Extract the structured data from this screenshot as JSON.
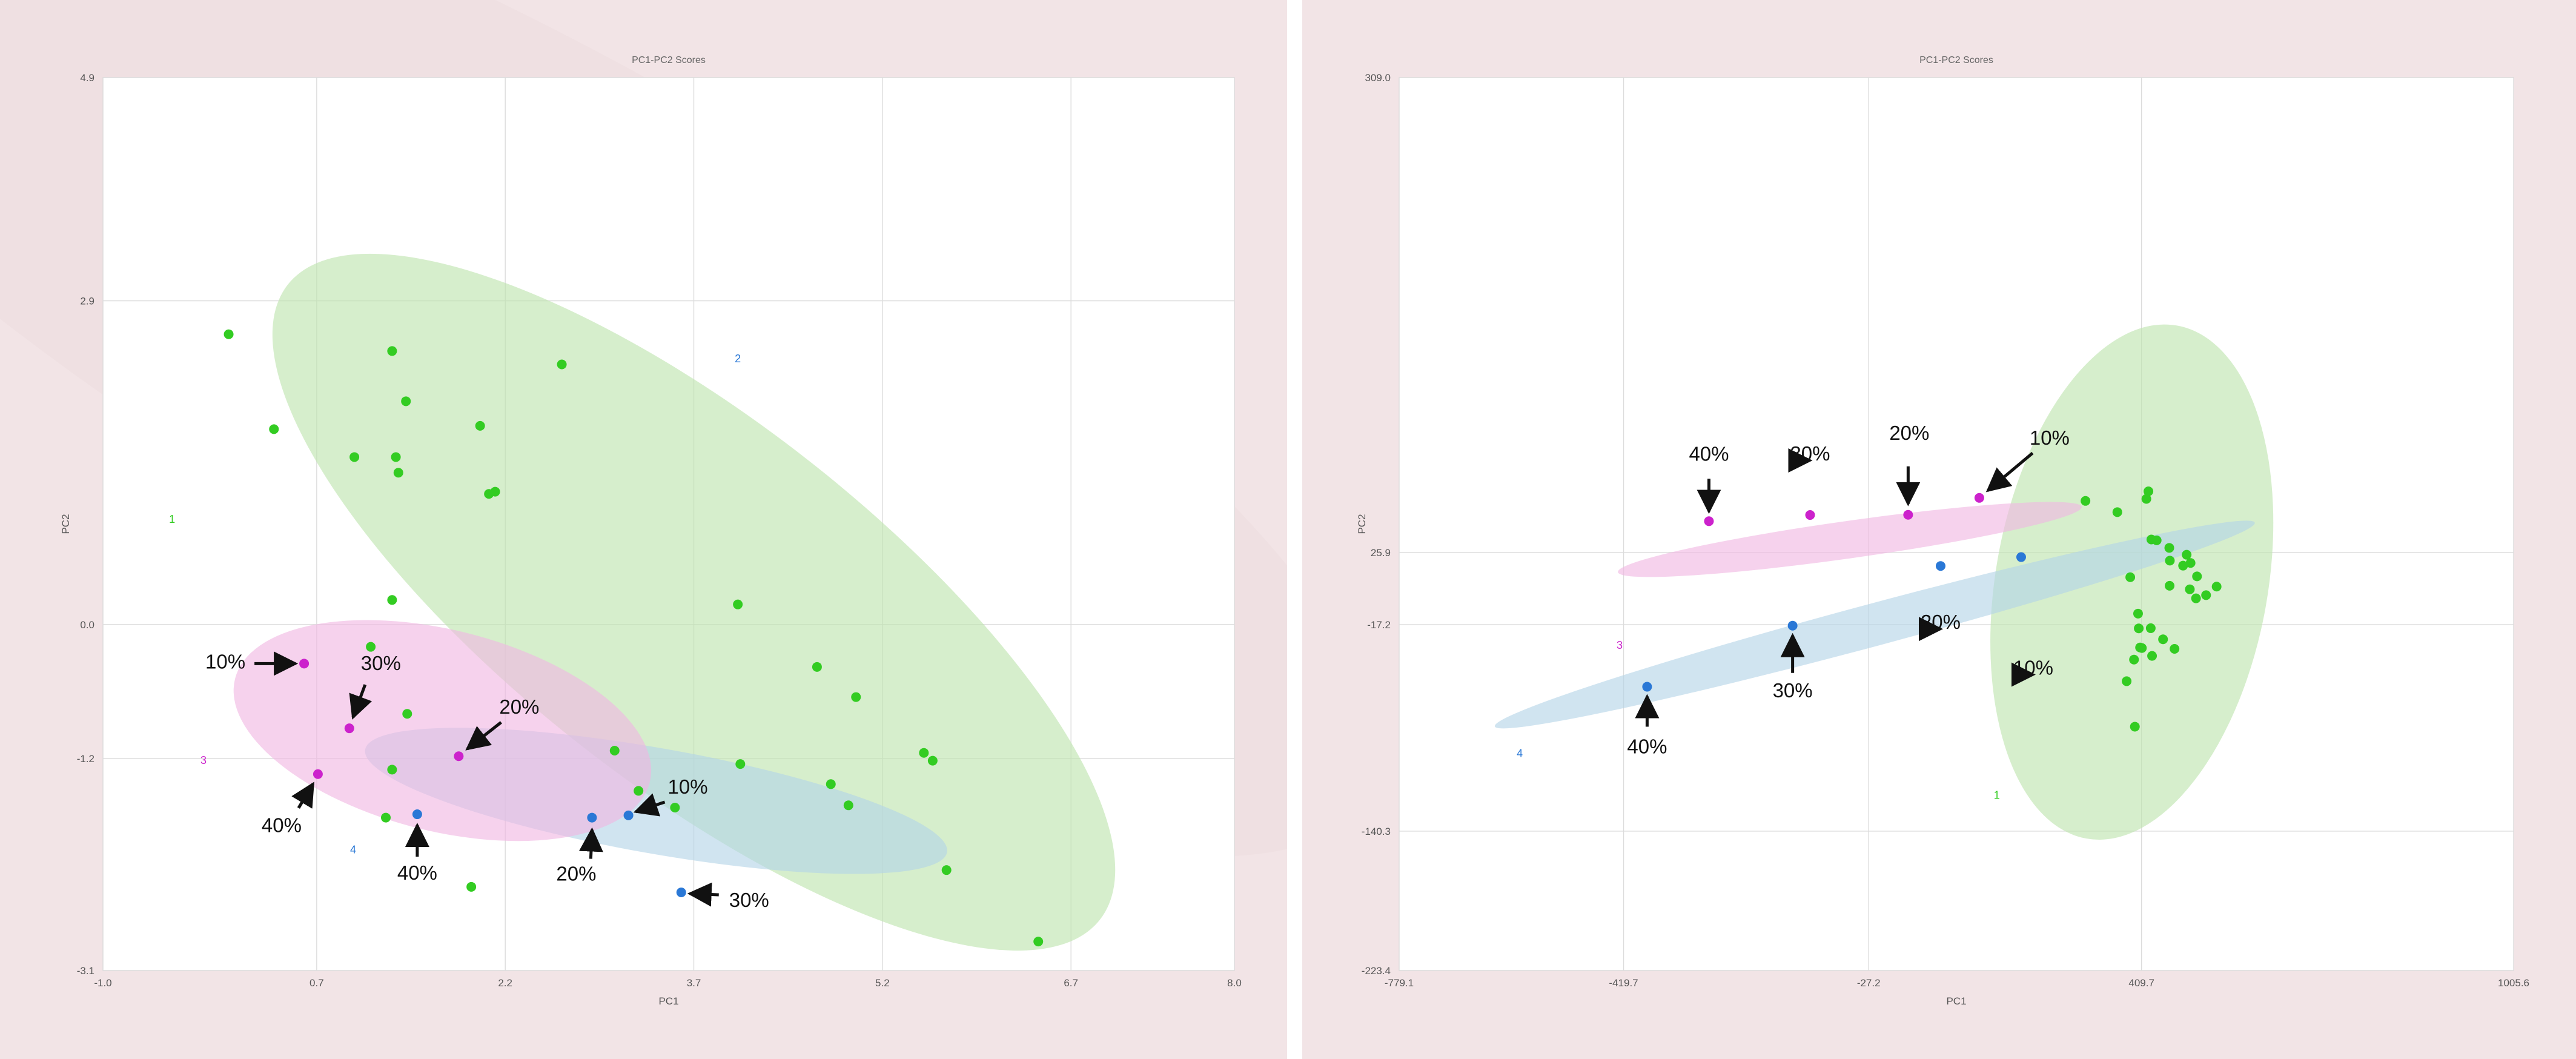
{
  "colors": {
    "background": "#f2e4e6",
    "plot_background": "#ffffff",
    "grid": "#dcdcdc",
    "green_points": "#33cc22",
    "blue_points": "#2a78d6",
    "magenta_points": "#cc22cc",
    "green_ellipse": "#bde3ad",
    "blue_ellipse": "#b3d3e6",
    "magenta_ellipse": "#f0b6e2",
    "background_ellipse": "#efe0e2",
    "arrow": "#111111"
  },
  "chart_data": [
    {
      "type": "scatter",
      "title": "PC1-PC2 Scores",
      "xlabel": "PC1",
      "ylabel": "PC2",
      "xlim": [
        -1.0,
        8.0
      ],
      "ylim": [
        -3.1,
        4.9
      ],
      "x_ticks": [
        -1.0,
        0.7,
        2.2,
        3.7,
        5.2,
        6.7,
        8.0
      ],
      "x_tick_labels": [
        "-1.0",
        "0.7",
        "2.2",
        "3.7",
        "5.2",
        "6.7",
        "8.0"
      ],
      "y_ticks": [
        4.9,
        2.9,
        0.0,
        -1.2,
        -3.1
      ],
      "y_tick_labels": [
        "4.9",
        "2.9",
        "0.0",
        "-1.2",
        "-3.1"
      ],
      "grid": true,
      "ellipses": [
        {
          "name": "",
          "color": "green",
          "cx": 3.7,
          "cy": 0.2,
          "rx": 4.1,
          "ry": 1.45,
          "angle": 38
        },
        {
          "name": "",
          "color": "blue",
          "cx": 3.4,
          "cy": -1.58,
          "rx": 2.35,
          "ry": 0.42,
          "angle": 10
        },
        {
          "name": "",
          "color": "magenta",
          "cx": 1.7,
          "cy": -0.95,
          "rx": 1.7,
          "ry": 0.8,
          "angle": 14
        }
      ],
      "series": [
        {
          "color": "green",
          "x": [
            0.0,
            0.36,
            1.3,
            1.33,
            1.35,
            1.41,
            2.0,
            2.07,
            2.12,
            2.65,
            4.05,
            4.68,
            4.93,
            4.99,
            3.07,
            3.26,
            3.55,
            4.07,
            4.79,
            5.53,
            5.6,
            5.71,
            6.44,
            1.13,
            1.3,
            1.0,
            1.3,
            1.25,
            1.93,
            1.42
          ],
          "y": [
            2.6,
            1.75,
            2.45,
            1.5,
            1.36,
            2.0,
            1.78,
            1.17,
            1.19,
            2.33,
            0.18,
            -0.38,
            -1.62,
            -0.65,
            -1.13,
            -1.49,
            -1.64,
            -1.25,
            -1.43,
            -1.15,
            -1.22,
            -2.2,
            -2.84,
            -0.2,
            0.22,
            1.5,
            -1.3,
            -1.73,
            -2.35,
            -0.8
          ]
        },
        {
          "color": "blue",
          "x": [
            1.5,
            2.89,
            3.18,
            3.6
          ],
          "y": [
            -1.7,
            -1.73,
            -1.71,
            -2.4
          ]
        },
        {
          "color": "magenta",
          "x": [
            0.6,
            0.96,
            0.71,
            1.83
          ],
          "y": [
            -0.35,
            -0.93,
            -1.34,
            -1.18
          ]
        }
      ],
      "annotations": [
        {
          "text": "10%",
          "x": 0.6,
          "y": -0.35
        },
        {
          "text": "30%",
          "x": 0.96,
          "y": -0.93
        },
        {
          "text": "40%",
          "x": 0.71,
          "y": -1.34
        },
        {
          "text": "20%",
          "x": 1.83,
          "y": -1.18
        },
        {
          "text": "40%",
          "x": 1.5,
          "y": -1.7
        },
        {
          "text": "20%",
          "x": 2.89,
          "y": -1.73
        },
        {
          "text": "10%",
          "x": 3.18,
          "y": -1.71
        },
        {
          "text": "30%",
          "x": 3.6,
          "y": -2.4
        }
      ],
      "small_markers": [
        {
          "text": "1",
          "x": -0.45,
          "y": 0.91,
          "color": "green"
        },
        {
          "text": "2",
          "x": 4.05,
          "y": 2.35,
          "color": "blue"
        },
        {
          "text": "3",
          "x": -0.2,
          "y": -1.25,
          "color": "magenta"
        },
        {
          "text": "4",
          "x": 0.99,
          "y": -2.05,
          "color": "blue"
        }
      ]
    },
    {
      "type": "scatter",
      "title": "PC1-PC2 Scores",
      "xlabel": "PC1",
      "ylabel": "PC2",
      "xlim": [
        -779.1,
        1005.6
      ],
      "ylim": [
        -223.4,
        309.0
      ],
      "x_ticks": [
        -779.1,
        -419.7,
        -27.2,
        409.7,
        1005.6
      ],
      "x_tick_labels": [
        "-779.1",
        "-419.7",
        "-27.2",
        "409.7",
        "1005.6"
      ],
      "y_ticks": [
        309.0,
        25.9,
        -17.2,
        -140.3,
        -223.4
      ],
      "y_tick_labels": [
        "309.0",
        "25.9",
        "-17.2",
        "-140.3",
        "-223.4"
      ],
      "grid": true,
      "ellipses": [
        {
          "name": "",
          "color": "green",
          "cx": 394.2,
          "cy": 8.2,
          "rx": 417.0,
          "ry": 218.0,
          "angle": -80
        },
        {
          "name": "",
          "color": "blue",
          "cx": -17.4,
          "cy": -17.1,
          "rx": 630.0,
          "ry": 34.0,
          "angle": -15
        },
        {
          "name": "",
          "color": "magenta",
          "cx": -57.4,
          "cy": 33.6,
          "rx": 375.0,
          "ry": 30.0,
          "angle": -8
        }
      ],
      "series": [
        {
          "color": "green",
          "x": [
            320.0,
            371.0,
            417.5,
            420.8,
            425.5,
            434.0,
            454.2,
            482.0,
            391.7,
            454.7,
            488.3,
            530.0,
            498.6,
            513.1,
            455.1,
            476.3,
            487.1,
            497.0,
            404.2,
            424.5,
            405.3,
            426.6,
            444.2,
            462.6,
            407.4,
            410.3,
            397.7,
            385.9,
            399.1
          ],
          "y": [
            56.6,
            49.9,
            57.8,
            62.3,
            33.6,
            33.1,
            28.6,
            24.5,
            11.1,
            6.0,
            19.6,
            5.5,
            11.6,
            0.4,
            21.0,
            18.0,
            3.9,
            -1.5,
            -10.6,
            -19.3,
            -19.4,
            -35.8,
            -25.9,
            -31.6,
            -30.8,
            -31.1,
            -38.0,
            -50.9,
            -78.0
          ]
        },
        {
          "color": "blue",
          "x": [
            -382.0,
            -149.0,
            88.0,
            217.0
          ],
          "y": [
            -54.2,
            -17.8,
            17.8,
            23.1
          ]
        },
        {
          "color": "magenta",
          "x": [
            -283.0,
            -121.0,
            36.0,
            150.0
          ],
          "y": [
            44.5,
            48.2,
            48.3,
            58.4
          ]
        }
      ],
      "annotations": [
        {
          "text": "40%",
          "x": -283.0,
          "y": 44.5
        },
        {
          "text": "30%",
          "x": -121.0,
          "y": 48.2
        },
        {
          "text": "20%",
          "x": 36.0,
          "y": 48.3
        },
        {
          "text": "10%",
          "x": 150.0,
          "y": 58.4
        },
        {
          "text": "40%",
          "x": -382.0,
          "y": -54.2
        },
        {
          "text": "30%",
          "x": -149.0,
          "y": -17.8
        },
        {
          "text": "20%",
          "x": 88.0,
          "y": 17.8
        },
        {
          "text": "10%",
          "x": 217.0,
          "y": 23.1
        }
      ],
      "small_markers": [
        {
          "text": "1",
          "x": 178.0,
          "y": -121.0,
          "color": "green"
        },
        {
          "text": "3",
          "x": -426.0,
          "y": -31.6,
          "color": "magenta"
        },
        {
          "text": "4",
          "x": -586.0,
          "y": -96.0,
          "color": "blue"
        }
      ]
    }
  ]
}
